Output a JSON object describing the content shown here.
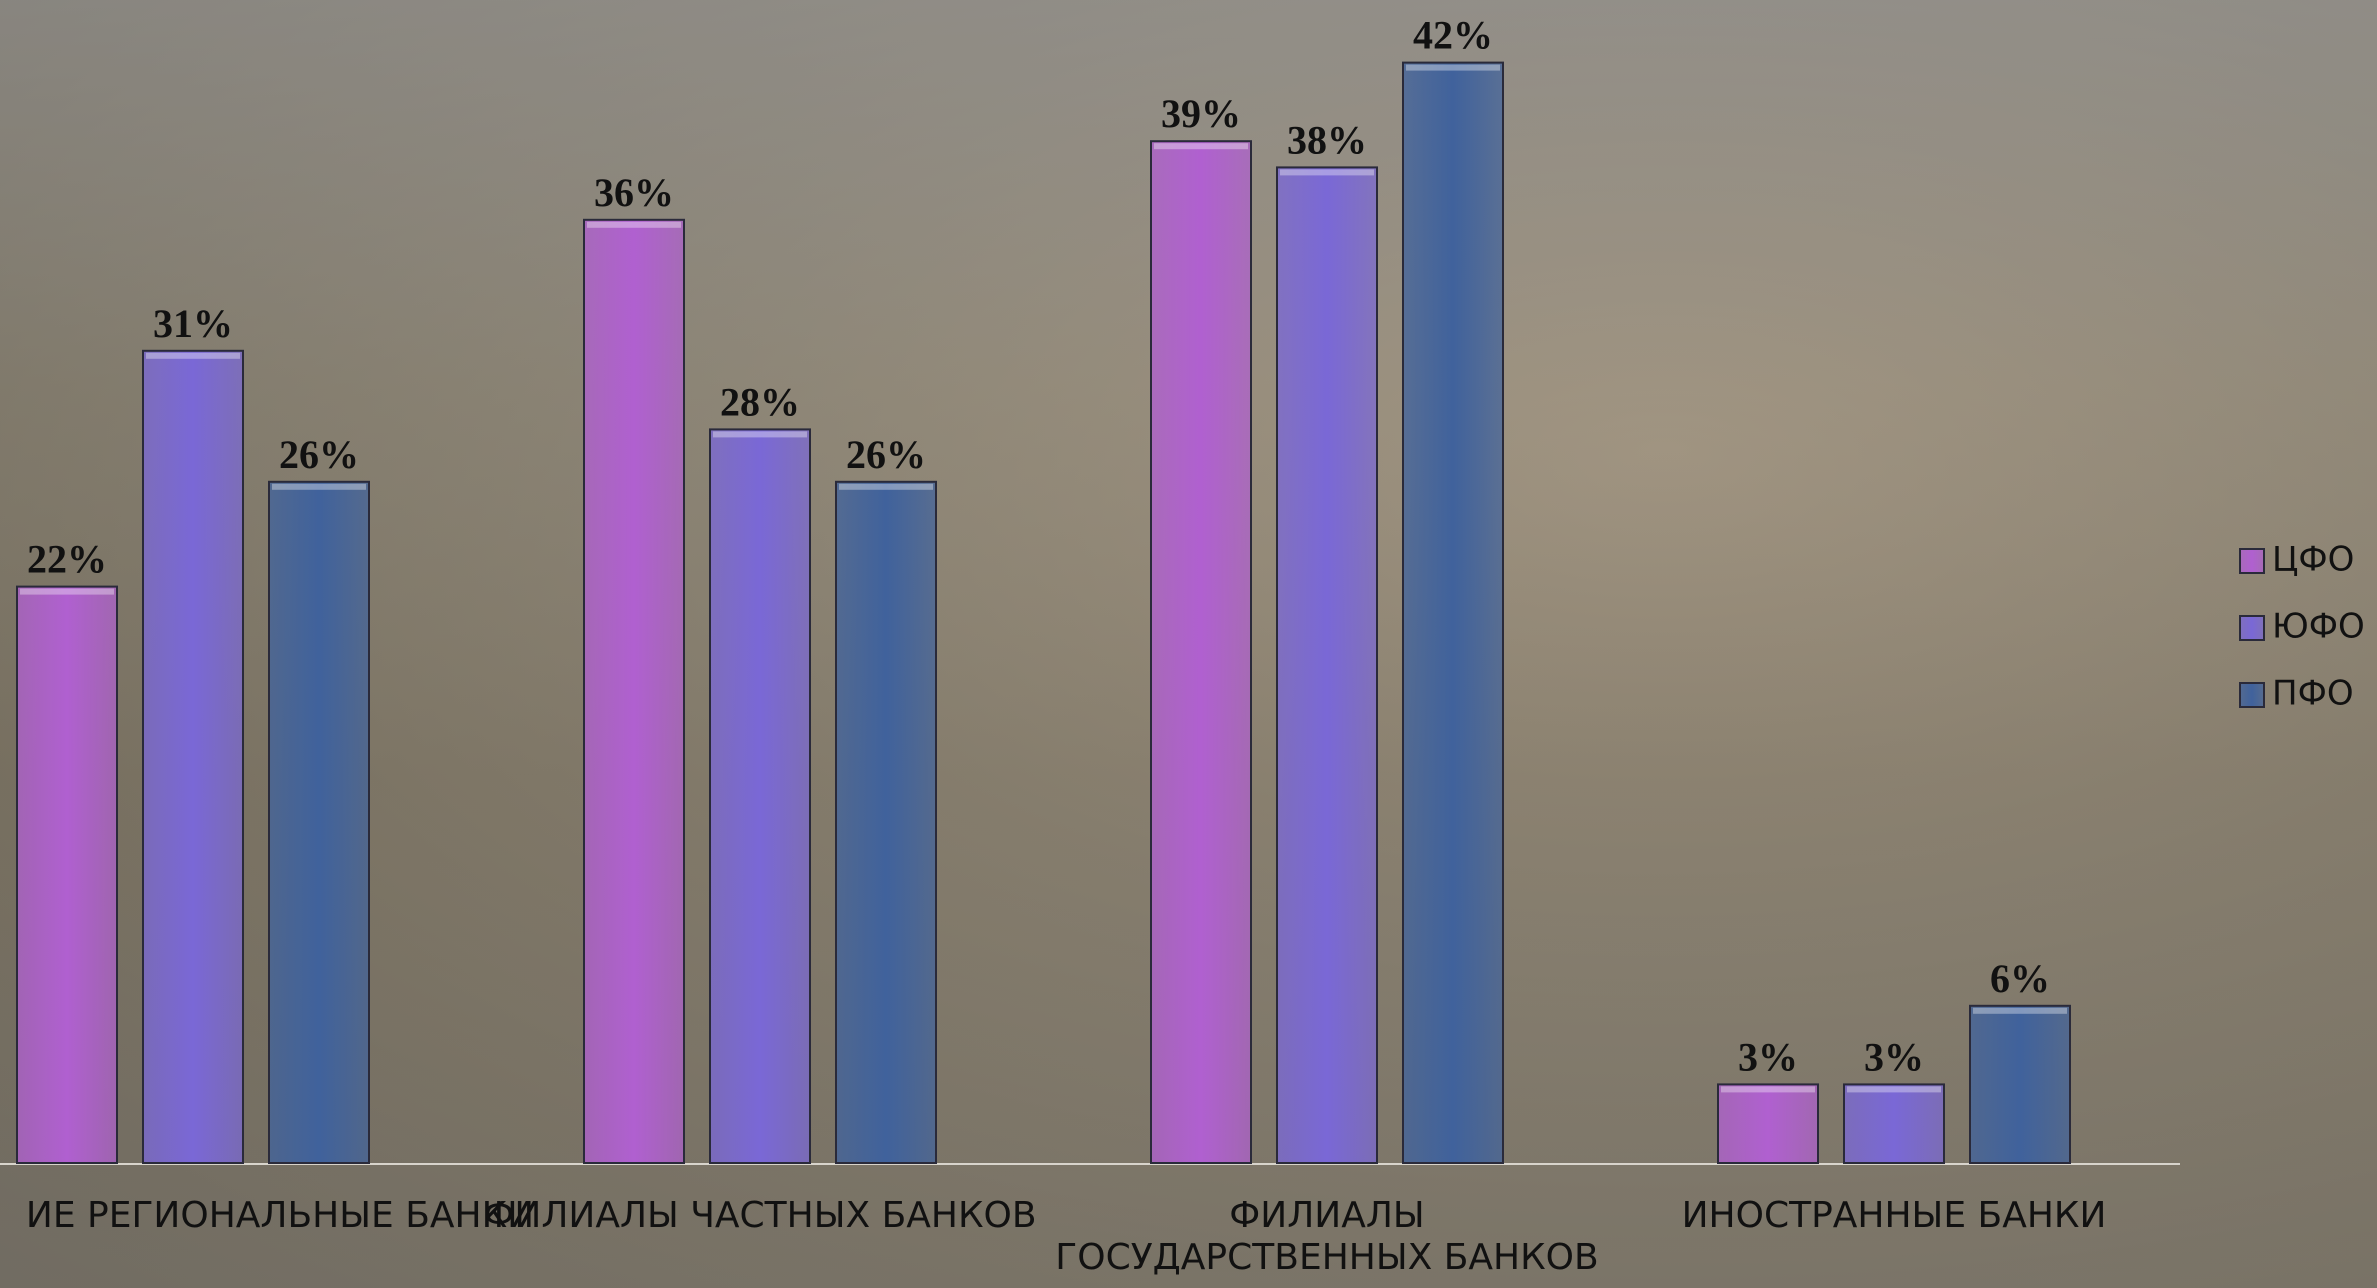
{
  "chart_data": {
    "type": "bar",
    "categories": [
      "ИЕ РЕГИОНАЛЬНЫЕ БАНКИ",
      "ФИЛИАЛЫ ЧАСТНЫХ БАНКОВ",
      "ФИЛИАЛЫ ГОСУДАРСТВЕННЫХ БАНКОВ",
      "ИНОСТРАННЫЕ БАНКИ"
    ],
    "series": [
      {
        "name": "ЦФО",
        "color": "#b060d0",
        "values": [
          22,
          36,
          39,
          3
        ],
        "value_labels": [
          "22%",
          "36%",
          "39%",
          "3%"
        ]
      },
      {
        "name": "ЮФО",
        "color": "#7a68d6",
        "values": [
          31,
          28,
          38,
          3
        ],
        "value_labels": [
          "31%",
          "28%",
          "38%",
          "3%"
        ]
      },
      {
        "name": "ПФО",
        "color": "#40629c",
        "values": [
          26,
          26,
          42,
          6
        ],
        "value_labels": [
          "26%",
          "26%",
          "42%",
          "6%"
        ]
      }
    ],
    "legend": "right"
  }
}
